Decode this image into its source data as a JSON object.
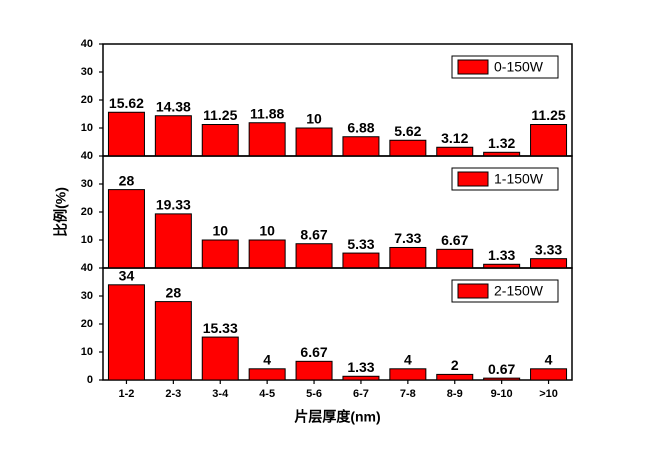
{
  "chart_data": [
    {
      "type": "bar",
      "series": [
        {
          "name": "0-150W",
          "color": "#ff0000",
          "values": [
            15.62,
            14.38,
            11.25,
            11.88,
            10,
            6.88,
            5.62,
            3.12,
            1.32,
            11.25
          ]
        }
      ],
      "ylim": [
        0,
        40
      ],
      "yticks": [
        10,
        20,
        30,
        40
      ],
      "legend": "upper right"
    },
    {
      "type": "bar",
      "ylabel": "比例(%)",
      "series": [
        {
          "name": "1-150W",
          "color": "#ff0000",
          "values": [
            28,
            19.33,
            10,
            10,
            8.67,
            5.33,
            7.33,
            6.67,
            1.33,
            3.33
          ]
        }
      ],
      "ylim": [
        0,
        40
      ],
      "yticks": [
        10,
        20,
        30,
        40
      ],
      "legend": "upper right"
    },
    {
      "type": "bar",
      "xlabel": "片层厚度(nm)",
      "categories": [
        "1-2",
        "2-3",
        "3-4",
        "4-5",
        "5-6",
        "6-7",
        "7-8",
        "8-9",
        "9-10",
        ">10"
      ],
      "series": [
        {
          "name": "2-150W",
          "color": "#ff0000",
          "values": [
            34,
            28,
            15.33,
            4,
            6.67,
            1.33,
            4,
            2,
            0.67,
            4
          ]
        }
      ],
      "ylim": [
        0,
        40
      ],
      "yticks": [
        0,
        10,
        20,
        30,
        40
      ],
      "legend": "upper right"
    }
  ]
}
